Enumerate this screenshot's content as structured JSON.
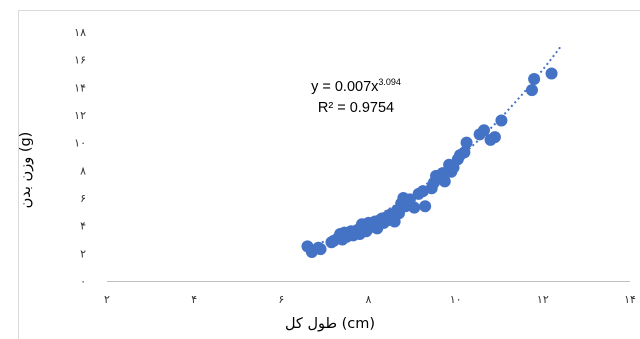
{
  "chart_data": {
    "type": "scatter",
    "xlabel": "طول کل (cm)",
    "ylabel": "وزن بدن (g)",
    "xlim": [
      2,
      14
    ],
    "ylim": [
      0,
      18
    ],
    "x_ticks": [
      2,
      4,
      6,
      8,
      10,
      12,
      14
    ],
    "x_tick_labels": [
      "۲",
      "۴",
      "۶",
      "۸",
      "۱۰",
      "۱۲",
      "۱۴"
    ],
    "y_ticks": [
      0,
      2,
      4,
      6,
      8,
      10,
      12,
      14,
      16,
      18
    ],
    "y_tick_labels": [
      "۰",
      "۲",
      "۴",
      "۶",
      "۸",
      "۱۰",
      "۱۲",
      "۱۴",
      "۱۶",
      "۱۸"
    ],
    "grid": false,
    "legend": false,
    "marker_color": "#4472c4",
    "trendline": {
      "type": "power",
      "coefficient": 0.007,
      "exponent": 3.094,
      "style": "dotted",
      "x_range": [
        6.5,
        12.4
      ],
      "equation_prefix": "y = 0.007x",
      "equation_exponent": "3.094",
      "r_squared_text": "R² = 0.9754"
    },
    "points": [
      {
        "x": 6.6,
        "y": 2.5
      },
      {
        "x": 6.7,
        "y": 2.1
      },
      {
        "x": 6.85,
        "y": 2.4
      },
      {
        "x": 6.9,
        "y": 2.3
      },
      {
        "x": 7.15,
        "y": 2.8
      },
      {
        "x": 7.2,
        "y": 2.9
      },
      {
        "x": 7.3,
        "y": 3.1
      },
      {
        "x": 7.35,
        "y": 3.4
      },
      {
        "x": 7.4,
        "y": 3.0
      },
      {
        "x": 7.45,
        "y": 3.5
      },
      {
        "x": 7.5,
        "y": 3.2
      },
      {
        "x": 7.55,
        "y": 3.4
      },
      {
        "x": 7.6,
        "y": 3.6
      },
      {
        "x": 7.65,
        "y": 3.3
      },
      {
        "x": 7.7,
        "y": 3.5
      },
      {
        "x": 7.75,
        "y": 3.7
      },
      {
        "x": 7.8,
        "y": 3.4
      },
      {
        "x": 7.85,
        "y": 4.1
      },
      {
        "x": 7.9,
        "y": 3.8
      },
      {
        "x": 7.95,
        "y": 3.6
      },
      {
        "x": 8.0,
        "y": 4.2
      },
      {
        "x": 8.05,
        "y": 3.9
      },
      {
        "x": 8.1,
        "y": 4.0
      },
      {
        "x": 8.15,
        "y": 4.3
      },
      {
        "x": 8.2,
        "y": 3.8
      },
      {
        "x": 8.25,
        "y": 4.1
      },
      {
        "x": 8.3,
        "y": 4.5
      },
      {
        "x": 8.35,
        "y": 4.2
      },
      {
        "x": 8.4,
        "y": 4.6
      },
      {
        "x": 8.45,
        "y": 4.4
      },
      {
        "x": 8.5,
        "y": 4.8
      },
      {
        "x": 8.55,
        "y": 4.5
      },
      {
        "x": 8.6,
        "y": 4.3
      },
      {
        "x": 8.65,
        "y": 5.1
      },
      {
        "x": 8.7,
        "y": 4.9
      },
      {
        "x": 8.75,
        "y": 5.6
      },
      {
        "x": 8.8,
        "y": 6.0
      },
      {
        "x": 8.85,
        "y": 5.4
      },
      {
        "x": 8.95,
        "y": 5.9
      },
      {
        "x": 9.05,
        "y": 5.3
      },
      {
        "x": 9.15,
        "y": 6.3
      },
      {
        "x": 9.25,
        "y": 6.5
      },
      {
        "x": 9.3,
        "y": 5.4
      },
      {
        "x": 9.45,
        "y": 6.7
      },
      {
        "x": 9.5,
        "y": 7.1
      },
      {
        "x": 9.55,
        "y": 7.6
      },
      {
        "x": 9.6,
        "y": 7.4
      },
      {
        "x": 9.7,
        "y": 7.8
      },
      {
        "x": 9.75,
        "y": 7.2
      },
      {
        "x": 9.85,
        "y": 8.4
      },
      {
        "x": 9.9,
        "y": 7.9
      },
      {
        "x": 9.95,
        "y": 8.2
      },
      {
        "x": 10.05,
        "y": 8.8
      },
      {
        "x": 10.1,
        "y": 9.1
      },
      {
        "x": 10.2,
        "y": 9.3
      },
      {
        "x": 10.25,
        "y": 10.0
      },
      {
        "x": 10.55,
        "y": 10.6
      },
      {
        "x": 10.65,
        "y": 10.9
      },
      {
        "x": 10.8,
        "y": 10.2
      },
      {
        "x": 10.9,
        "y": 10.4
      },
      {
        "x": 11.05,
        "y": 11.6
      },
      {
        "x": 11.75,
        "y": 13.8
      },
      {
        "x": 11.8,
        "y": 14.6
      },
      {
        "x": 12.2,
        "y": 15.0
      }
    ]
  }
}
